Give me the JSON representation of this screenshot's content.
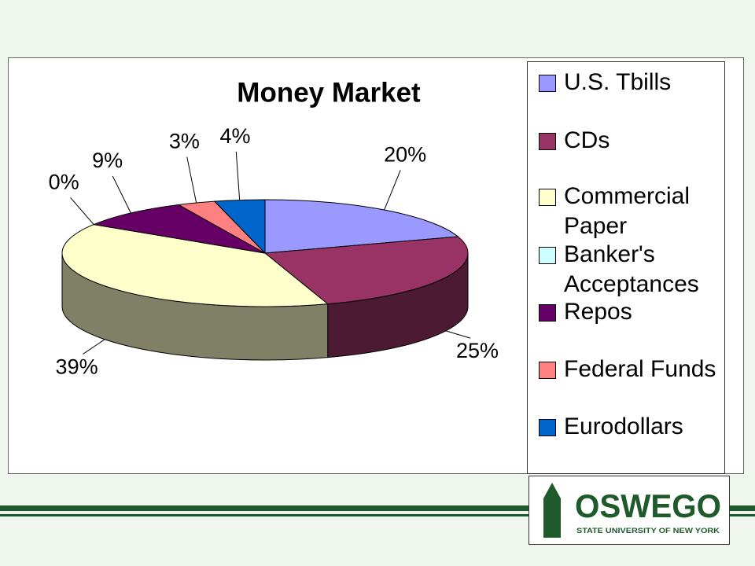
{
  "chart_data": {
    "type": "pie",
    "title": "Money Market",
    "categories": [
      "U.S. Tbills",
      "CDs",
      "Commercial Paper",
      "Banker's Acceptances",
      "Repos",
      "Federal Funds",
      "Eurodollars"
    ],
    "values": [
      20,
      25,
      39,
      0,
      9,
      3,
      4
    ],
    "value_labels": [
      "20%",
      "25%",
      "39%",
      "0%",
      "9%",
      "3%",
      "4%"
    ],
    "colors": [
      "#9999ff",
      "#993366",
      "#ffffcc",
      "#ccffff",
      "#660066",
      "#ff8080",
      "#0066cc"
    ],
    "legend": "right"
  },
  "logo": {
    "name": "OSWEGO",
    "subtitle": "STATE UNIVERSITY OF NEW YORK"
  }
}
